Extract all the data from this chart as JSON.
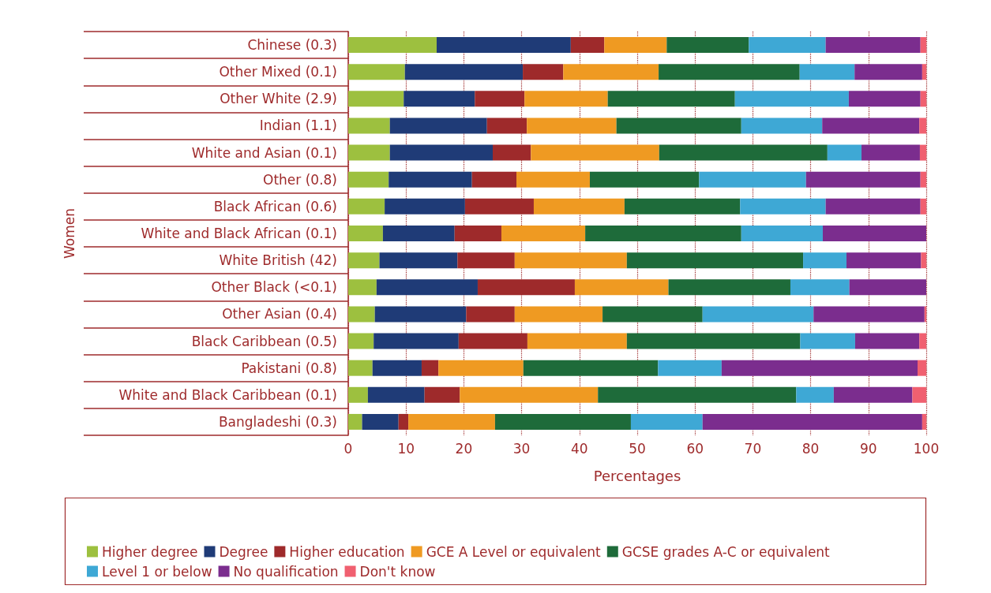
{
  "chart_data": {
    "type": "bar",
    "orientation": "horizontal",
    "stacked": true,
    "xlabel": "Percentages",
    "ylabel": "Women",
    "categories": [
      "Chinese (0.3)",
      "Other Mixed (0.1)",
      "Other White (2.9)",
      "Indian (1.1)",
      "White and Asian (0.1)",
      "Other (0.8)",
      "Black African (0.6)",
      "White and Black African (0.1)",
      "White British (42)",
      "Other Black (<0.1)",
      "Other Asian (0.4)",
      "Black Caribbean (0.5)",
      "Pakistani (0.8)",
      "White and Black Caribbean (0.1)",
      "Bangladeshi (0.3)"
    ],
    "xlim": [
      0,
      100
    ],
    "xticks": [
      0,
      10,
      20,
      30,
      40,
      50,
      60,
      70,
      80,
      90,
      100
    ],
    "grid": "x",
    "legend": "bottom",
    "series": [
      {
        "name": "Higher degree",
        "color": "#9dc03f",
        "values": [
          15.3,
          9.8,
          9.6,
          7.2,
          7.2,
          7.0,
          6.3,
          6.0,
          5.4,
          4.9,
          4.6,
          4.4,
          4.2,
          3.4,
          2.4
        ]
      },
      {
        "name": "Degree",
        "color": "#1f3b77",
        "values": [
          23.2,
          20.4,
          12.3,
          16.8,
          17.8,
          14.4,
          13.9,
          12.4,
          13.5,
          17.5,
          15.8,
          14.7,
          8.5,
          9.8,
          6.3
        ]
      },
      {
        "name": "Higher education",
        "color": "#9e2a2b",
        "values": [
          5.8,
          7.0,
          8.6,
          6.9,
          6.6,
          7.7,
          11.9,
          8.1,
          9.9,
          16.8,
          8.4,
          11.9,
          2.9,
          6.1,
          1.7
        ]
      },
      {
        "name": "GCE A Level or equivalent",
        "color": "#ef9a22",
        "values": [
          10.8,
          16.5,
          14.4,
          15.5,
          22.2,
          12.7,
          15.7,
          14.5,
          19.4,
          16.2,
          15.2,
          17.2,
          14.7,
          23.9,
          15.0
        ]
      },
      {
        "name": "GCSE grades A-C or equivalent",
        "color": "#1e6b3a",
        "values": [
          14.2,
          24.4,
          22.0,
          21.6,
          29.1,
          18.9,
          20.0,
          27.0,
          30.5,
          21.1,
          17.3,
          30.0,
          23.3,
          34.3,
          23.5
        ]
      },
      {
        "name": "Level 1 or below",
        "color": "#3ea8d5",
        "values": [
          13.3,
          9.5,
          19.7,
          14.0,
          5.9,
          18.5,
          14.8,
          14.1,
          7.5,
          10.2,
          19.2,
          9.5,
          11.0,
          6.5,
          12.4
        ]
      },
      {
        "name": "No qualification",
        "color": "#7b2d8e",
        "values": [
          16.4,
          11.7,
          12.4,
          16.8,
          10.1,
          19.8,
          16.4,
          17.9,
          12.9,
          13.3,
          19.2,
          11.1,
          33.9,
          13.6,
          38.0
        ]
      },
      {
        "name": "Don't know",
        "color": "#f06070",
        "values": [
          1.0,
          0.7,
          1.0,
          1.2,
          1.1,
          1.0,
          1.0,
          0,
          0.9,
          0,
          0.3,
          1.2,
          1.5,
          2.4,
          0.7
        ]
      }
    ]
  }
}
